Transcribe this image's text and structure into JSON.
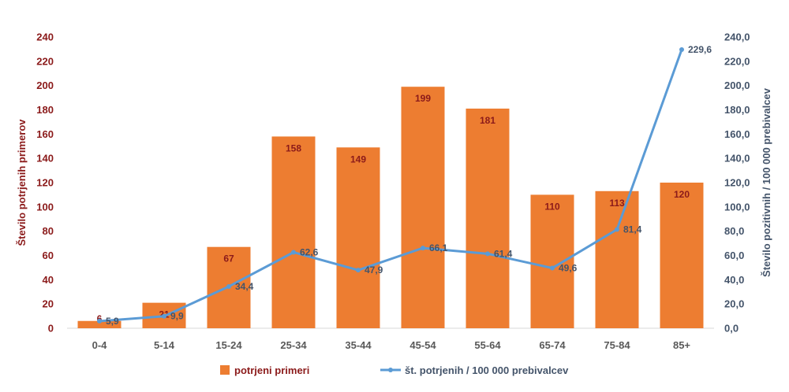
{
  "chart_data": {
    "type": "bar",
    "categories": [
      "0-4",
      "5-14",
      "15-24",
      "25-34",
      "35-44",
      "45-54",
      "55-64",
      "65-74",
      "75-84",
      "85+"
    ],
    "series": [
      {
        "name": "potrjeni primeri",
        "type": "bar",
        "axis": "left",
        "color": "#ed7d31",
        "values": [
          6,
          21,
          67,
          158,
          149,
          199,
          181,
          110,
          113,
          120
        ],
        "labels": [
          "6",
          "21",
          "67",
          "158",
          "149",
          "199",
          "181",
          "110",
          "113",
          "120"
        ]
      },
      {
        "name": "št. potrjenih / 100 000 prebivalcev",
        "type": "line",
        "axis": "right",
        "color": "#5b9bd5",
        "values": [
          5.9,
          9.9,
          34.4,
          62.6,
          47.9,
          66.1,
          61.4,
          49.6,
          81.4,
          229.6
        ],
        "labels": [
          "5,9",
          "9,9",
          "34,4",
          "62,6",
          "47,9",
          "66,1",
          "61,4",
          "49,6",
          "81,4",
          "229,6"
        ]
      }
    ],
    "ylabel": "Število potrjenih primerov",
    "y2label": "Število pozitivnih / 100 000 prebivalcev",
    "ylim": [
      0,
      240
    ],
    "y2lim": [
      0,
      240
    ],
    "yticks": [
      "0",
      "20",
      "40",
      "60",
      "80",
      "100",
      "120",
      "140",
      "160",
      "180",
      "200",
      "220",
      "240"
    ],
    "y2ticks": [
      "0,0",
      "20,0",
      "40,0",
      "60,0",
      "80,0",
      "100,0",
      "120,0",
      "140,0",
      "160,0",
      "180,0",
      "200,0",
      "220,0",
      "240,0"
    ],
    "grid": false,
    "legend_position": "bottom",
    "label_color_left": "#8b1a1a",
    "label_color_right": "#44546a",
    "tick_color_x": "#595959"
  }
}
